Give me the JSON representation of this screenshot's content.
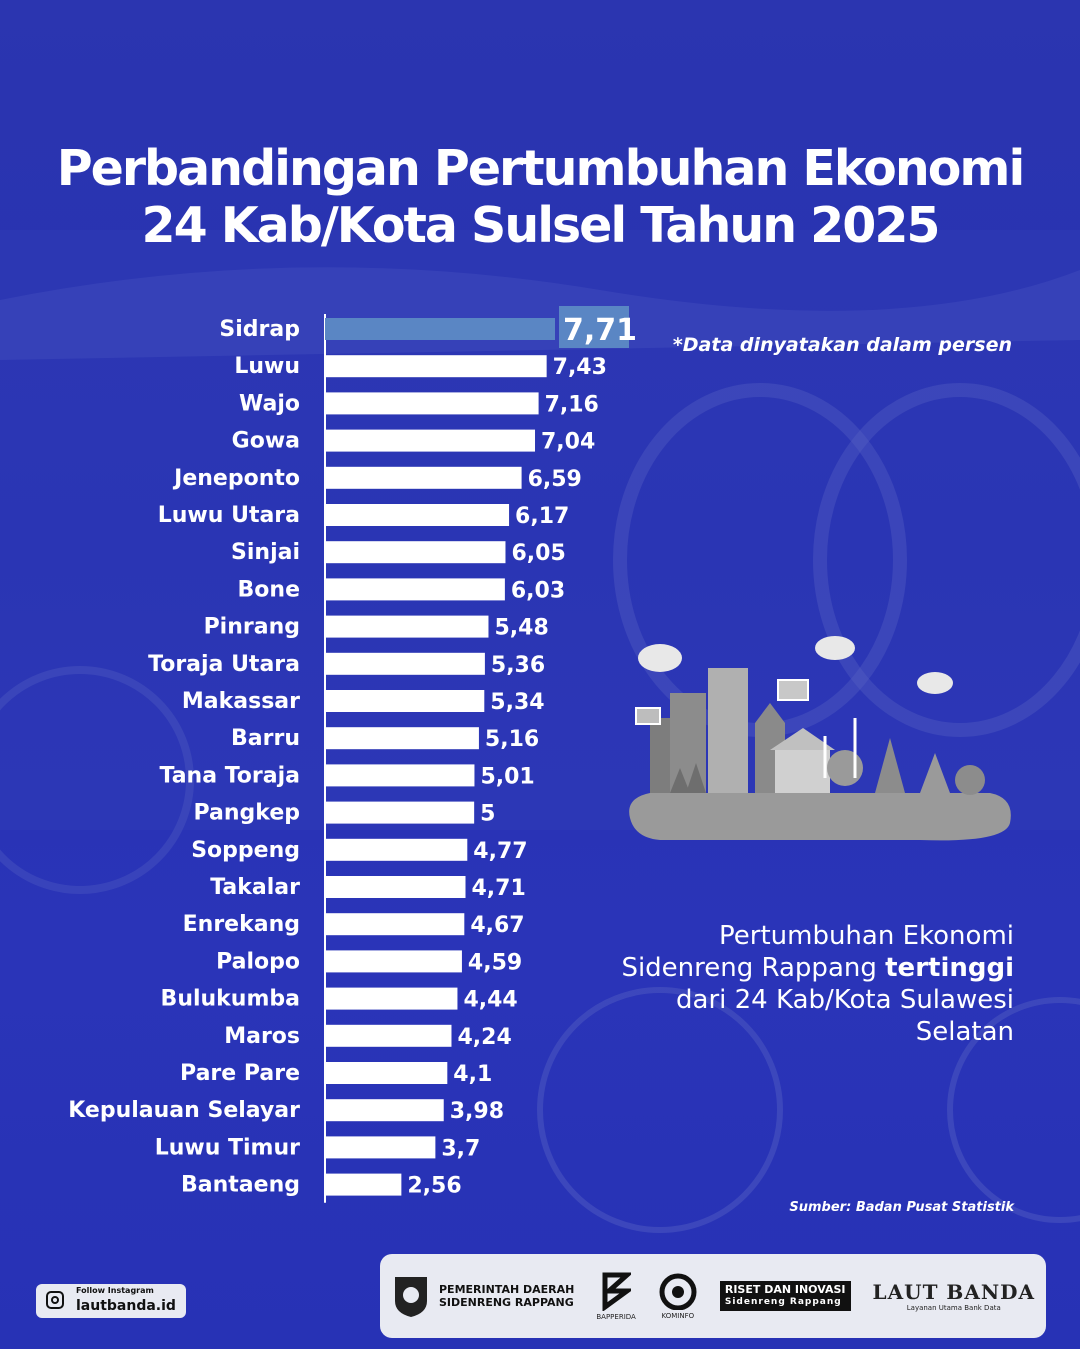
{
  "title_line1": "Perbandingan Pertumbuhan Ekonomi",
  "title_line2": "24 Kab/Kota Sulsel Tahun 2025",
  "note": "*Data dinyatakan dalam persen",
  "caption": {
    "part1": "Pertumbuhan Ekonomi",
    "part2": "Sidenreng Rappang ",
    "highlight": "tertinggi",
    "part3": "dari 24 Kab/Kota Sulawesi",
    "part4": "Selatan"
  },
  "source": "Sumber: Badan Pusat Statistik",
  "logos": {
    "pemda_line1": "PEMERINTAH DAERAH",
    "pemda_line2": "SIDENRENG RAPPANG",
    "bapperida": "BAPPERIDA",
    "kominfo": "KOMINFO",
    "riset_line1": "RISET DAN INOVASI",
    "riset_line2": "Sidenreng Rappang",
    "laut": "LAUT BANDA",
    "laut_sub": "Layanan Utama Bank Data"
  },
  "instagram": {
    "follow": "Follow Instagram",
    "handle": "lautbanda.id"
  },
  "colors": {
    "background": "#2a34b6",
    "bar": "#ffffff",
    "highlight_bar": "#5a86c4"
  },
  "chart_data": {
    "type": "bar",
    "orientation": "horizontal",
    "categories": [
      "Sidrap",
      "Luwu",
      "Wajo",
      "Gowa",
      "Jeneponto",
      "Luwu Utara",
      "Sinjai",
      "Bone",
      "Pinrang",
      "Toraja Utara",
      "Makassar",
      "Barru",
      "Tana Toraja",
      "Pangkep",
      "Soppeng",
      "Takalar",
      "Enrekang",
      "Palopo",
      "Bulukumba",
      "Maros",
      "Pare Pare",
      "Kepulauan Selayar",
      "Luwu Timur",
      "Bantaeng"
    ],
    "values": [
      7.71,
      7.43,
      7.16,
      7.04,
      6.59,
      6.17,
      6.05,
      6.03,
      5.48,
      5.36,
      5.34,
      5.16,
      5.01,
      5,
      4.77,
      4.71,
      4.67,
      4.59,
      4.44,
      4.24,
      4.1,
      3.98,
      3.7,
      2.56
    ],
    "value_labels": [
      "7,71",
      "7,43",
      "7,16",
      "7,04",
      "6,59",
      "6,17",
      "6,05",
      "6,03",
      "5,48",
      "5,36",
      "5,34",
      "5,16",
      "5,01",
      "5",
      "4,77",
      "4,71",
      "4,67",
      "4,59",
      "4,44",
      "4,24",
      "4,1",
      "3,98",
      "3,7",
      "2,56"
    ],
    "highlight_index": 0,
    "unit": "persen"
  }
}
